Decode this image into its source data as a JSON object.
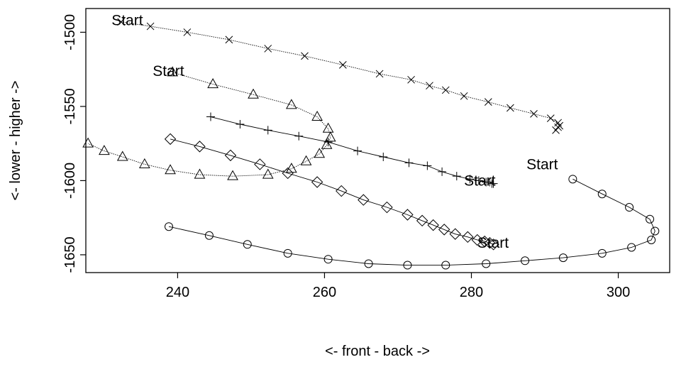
{
  "chart_data": {
    "type": "line",
    "title": "",
    "xlabel": "<- front - back ->",
    "ylabel": "<- lower - higher ->",
    "xlim": [
      227.5,
      307
    ],
    "ylim": [
      -1662,
      -1484
    ],
    "x_ticks": [
      240,
      260,
      280,
      300
    ],
    "y_ticks": [
      -1500,
      -1550,
      -1600,
      -1650
    ],
    "grid": false,
    "legend": "none",
    "annotation_text": "Start",
    "series": [
      {
        "marker": "x",
        "line_style": "dotted",
        "start_label": [
          231.0,
          -1492
        ],
        "points": [
          [
            232.3,
            -1493
          ],
          [
            236.3,
            -1496
          ],
          [
            241.3,
            -1500
          ],
          [
            247.0,
            -1505
          ],
          [
            252.3,
            -1511
          ],
          [
            257.3,
            -1516
          ],
          [
            262.5,
            -1522
          ],
          [
            267.5,
            -1528
          ],
          [
            271.8,
            -1532
          ],
          [
            274.3,
            -1536
          ],
          [
            276.5,
            -1539
          ],
          [
            279.0,
            -1543
          ],
          [
            282.3,
            -1547
          ],
          [
            285.3,
            -1551
          ],
          [
            288.5,
            -1555
          ],
          [
            290.8,
            -1558
          ],
          [
            291.8,
            -1561
          ],
          [
            292.0,
            -1563
          ],
          [
            291.8,
            -1564
          ],
          [
            291.5,
            -1566
          ]
        ]
      },
      {
        "marker": "triangle",
        "line_style": "dotted",
        "start_label": [
          236.6,
          -1526
        ],
        "points": [
          [
            239.3,
            -1527
          ],
          [
            244.8,
            -1535
          ],
          [
            250.3,
            -1542
          ],
          [
            255.5,
            -1549
          ],
          [
            259.0,
            -1557
          ],
          [
            260.5,
            -1565
          ],
          [
            260.8,
            -1571
          ],
          [
            260.3,
            -1576
          ],
          [
            259.3,
            -1582
          ],
          [
            257.5,
            -1587
          ],
          [
            255.5,
            -1592
          ],
          [
            252.3,
            -1596
          ],
          [
            247.5,
            -1597
          ],
          [
            243.0,
            -1596
          ],
          [
            239.0,
            -1593
          ],
          [
            235.5,
            -1589
          ],
          [
            232.5,
            -1584
          ],
          [
            230.0,
            -1580
          ],
          [
            227.8,
            -1575
          ]
        ]
      },
      {
        "marker": "plus",
        "line_style": "solid",
        "start_label": [
          279.0,
          -1600
        ],
        "points": [
          [
            244.5,
            -1557
          ],
          [
            248.5,
            -1562
          ],
          [
            252.3,
            -1566
          ],
          [
            256.5,
            -1570
          ],
          [
            260.5,
            -1574
          ],
          [
            264.5,
            -1580
          ],
          [
            268.0,
            -1584
          ],
          [
            271.5,
            -1588
          ],
          [
            274.0,
            -1590
          ],
          [
            276.0,
            -1594
          ],
          [
            278.0,
            -1597
          ],
          [
            279.8,
            -1599
          ],
          [
            281.0,
            -1600
          ],
          [
            282.0,
            -1601
          ],
          [
            282.5,
            -1601
          ],
          [
            282.8,
            -1602
          ],
          [
            283.0,
            -1602
          ]
        ]
      },
      {
        "marker": "diamond",
        "line_style": "solid",
        "start_label": [
          280.8,
          -1642
        ],
        "points": [
          [
            239.0,
            -1572
          ],
          [
            243.0,
            -1577
          ],
          [
            247.2,
            -1583
          ],
          [
            251.2,
            -1589
          ],
          [
            255.0,
            -1595
          ],
          [
            259.0,
            -1601
          ],
          [
            262.3,
            -1607
          ],
          [
            265.3,
            -1613
          ],
          [
            268.5,
            -1618
          ],
          [
            271.3,
            -1623
          ],
          [
            273.3,
            -1627
          ],
          [
            274.8,
            -1630
          ],
          [
            276.3,
            -1633
          ],
          [
            277.8,
            -1636
          ],
          [
            279.5,
            -1638
          ],
          [
            280.8,
            -1640
          ],
          [
            281.8,
            -1641
          ],
          [
            282.5,
            -1642
          ],
          [
            283.0,
            -1643
          ]
        ]
      },
      {
        "marker": "circle",
        "line_style": "solid",
        "start_label": [
          287.5,
          -1589
        ],
        "points": [
          [
            293.8,
            -1599
          ],
          [
            297.8,
            -1609
          ],
          [
            301.5,
            -1618
          ],
          [
            304.3,
            -1626
          ],
          [
            305.0,
            -1634
          ],
          [
            304.5,
            -1640
          ],
          [
            301.8,
            -1645
          ],
          [
            297.8,
            -1649
          ],
          [
            292.5,
            -1652
          ],
          [
            287.3,
            -1654
          ],
          [
            282.0,
            -1656
          ],
          [
            276.5,
            -1657
          ],
          [
            271.3,
            -1657
          ],
          [
            266.0,
            -1656
          ],
          [
            260.5,
            -1653
          ],
          [
            255.0,
            -1649
          ],
          [
            249.5,
            -1643
          ],
          [
            244.3,
            -1637
          ],
          [
            238.8,
            -1631
          ]
        ]
      }
    ]
  }
}
